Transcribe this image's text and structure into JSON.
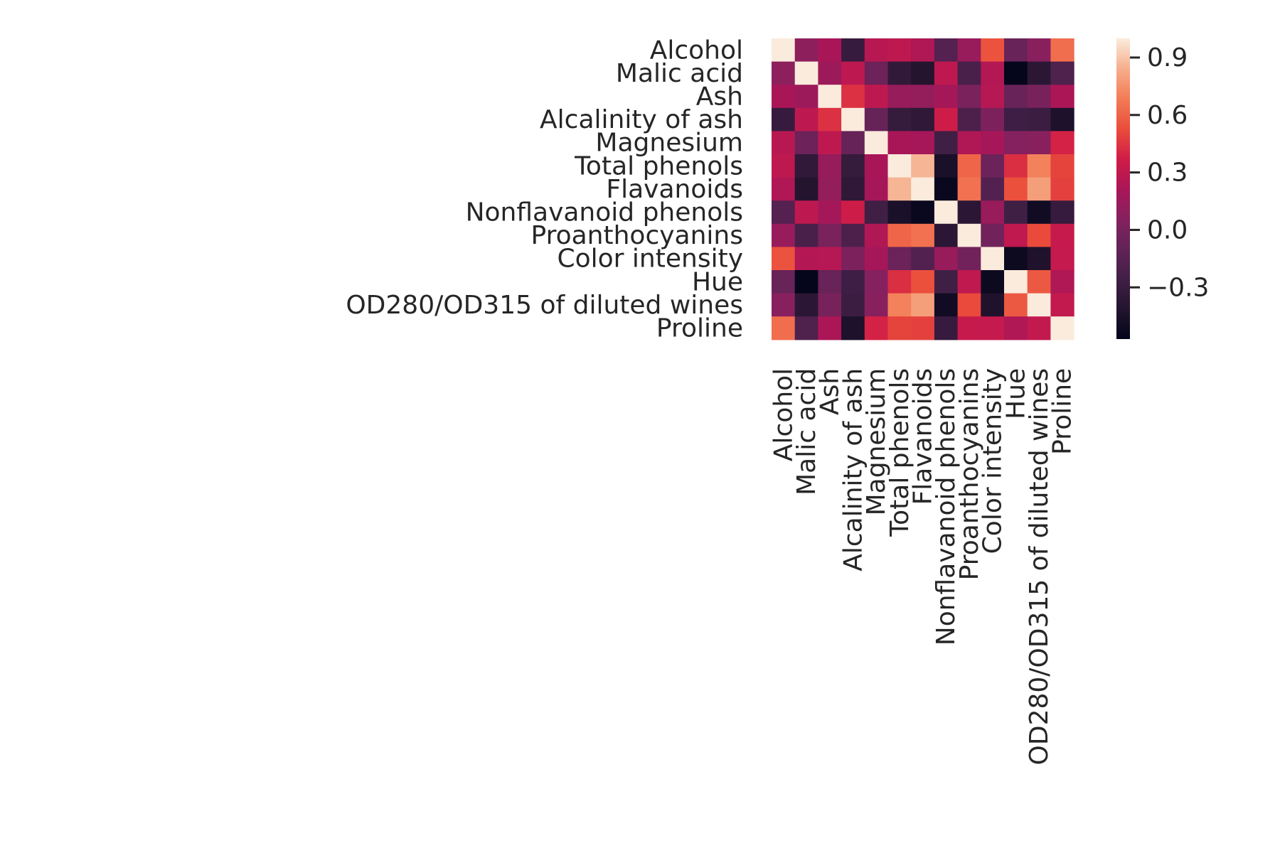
{
  "chart_data": {
    "type": "heatmap",
    "title": "",
    "xlabel": "",
    "ylabel": "",
    "rows": [
      "Alcohol",
      "Malic acid",
      "Ash",
      "Alcalinity of ash",
      "Magnesium",
      "Total phenols",
      "Flavanoids",
      "Nonflavanoid phenols",
      "Proanthocyanins",
      "Color intensity",
      "Hue",
      "OD280/OD315 of diluted wines",
      "Proline"
    ],
    "columns": [
      "Alcohol",
      "Malic acid",
      "Ash",
      "Alcalinity of ash",
      "Magnesium",
      "Total phenols",
      "Flavanoids",
      "Nonflavanoid phenols",
      "Proanthocyanins",
      "Color intensity",
      "Hue",
      "OD280/OD315 of diluted wines",
      "Proline"
    ],
    "values": [
      [
        1.0,
        0.09,
        0.21,
        -0.31,
        0.27,
        0.29,
        0.24,
        -0.16,
        0.14,
        0.55,
        -0.07,
        0.07,
        0.64
      ],
      [
        0.09,
        1.0,
        0.16,
        0.29,
        -0.05,
        -0.34,
        -0.41,
        0.29,
        -0.22,
        0.25,
        -0.56,
        -0.37,
        -0.19
      ],
      [
        0.21,
        0.16,
        1.0,
        0.44,
        0.29,
        0.13,
        0.12,
        0.19,
        0.01,
        0.26,
        -0.07,
        0.0,
        0.22
      ],
      [
        -0.31,
        0.29,
        0.44,
        1.0,
        -0.08,
        -0.32,
        -0.35,
        0.36,
        -0.2,
        0.02,
        -0.27,
        -0.28,
        -0.44
      ],
      [
        0.27,
        -0.05,
        0.29,
        -0.08,
        1.0,
        0.21,
        0.2,
        -0.26,
        0.24,
        0.2,
        0.06,
        0.07,
        0.39
      ],
      [
        0.29,
        -0.34,
        0.13,
        -0.32,
        0.21,
        1.0,
        0.86,
        -0.45,
        0.61,
        -0.06,
        0.43,
        0.7,
        0.5
      ],
      [
        0.24,
        -0.41,
        0.12,
        -0.35,
        0.2,
        0.86,
        1.0,
        -0.54,
        0.65,
        -0.17,
        0.54,
        0.79,
        0.49
      ],
      [
        -0.16,
        0.29,
        0.19,
        0.36,
        -0.26,
        -0.45,
        -0.54,
        1.0,
        -0.37,
        0.14,
        -0.26,
        -0.5,
        -0.31
      ],
      [
        0.14,
        -0.22,
        0.01,
        -0.2,
        0.24,
        0.61,
        0.65,
        -0.37,
        1.0,
        -0.03,
        0.3,
        0.52,
        0.33
      ],
      [
        0.55,
        0.25,
        0.26,
        0.02,
        0.2,
        -0.06,
        -0.17,
        0.14,
        -0.03,
        1.0,
        -0.52,
        -0.43,
        0.32
      ],
      [
        -0.07,
        -0.56,
        -0.07,
        -0.27,
        0.06,
        0.43,
        0.54,
        -0.26,
        0.3,
        -0.52,
        1.0,
        0.57,
        0.24
      ],
      [
        0.07,
        -0.37,
        0.0,
        -0.28,
        0.07,
        0.7,
        0.79,
        -0.5,
        0.52,
        -0.43,
        0.57,
        1.0,
        0.31
      ],
      [
        0.64,
        -0.19,
        0.22,
        -0.44,
        0.39,
        0.5,
        0.49,
        -0.31,
        0.33,
        0.32,
        0.24,
        0.31,
        1.0
      ]
    ],
    "colorbar": {
      "vmin": -0.57,
      "vmax": 1.0,
      "ticks": [
        0.9,
        0.6,
        0.3,
        0.0,
        -0.3
      ],
      "tick_labels": [
        "0.9",
        "0.6",
        "0.3",
        "0.0",
        "−0.3"
      ],
      "colormap": "rocket"
    },
    "grid": false,
    "legend": "colorbar-right"
  }
}
